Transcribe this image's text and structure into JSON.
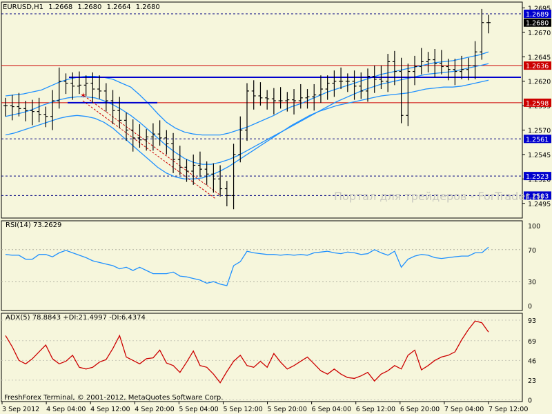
{
  "header": {
    "symbol": "EURUSD,H1",
    "open": "1.2668",
    "high": "1.2680",
    "low": "1.2664",
    "close": "1.2680"
  },
  "watermark": "Портал для трейдеров - ForTrader.ru",
  "copyright": "FreshForex Terminal, © 2001-2012, MetaQuotes Software Corp.",
  "colors": {
    "background": "#F6F6DC",
    "price_line": "#000000",
    "bollinger": "#1E90FF",
    "support_line": "#0000CD",
    "resistance_line": "#CC0000",
    "rsi_line": "#1E90FF",
    "adx_line": "#CC0000",
    "grid_dash": "#000080"
  },
  "chart_data": [
    {
      "type": "line",
      "title": "EURUSD,H1 1.2668 1.2680 1.2664 1.2680",
      "ylim": [
        1.248,
        1.2701
      ],
      "y_ticks": [
        "1.2695",
        "1.2670",
        "1.2645",
        "1.2620",
        "1.2595",
        "1.2570",
        "1.2545",
        "1.2520",
        "1.2495"
      ],
      "x_ticks": [
        "3 Sep 2012",
        "4 Sep 04:00",
        "4 Sep 12:00",
        "4 Sep 20:00",
        "5 Sep 04:00",
        "5 Sep 12:00",
        "5 Sep 20:00",
        "6 Sep 04:00",
        "6 Sep 12:00",
        "6 Sep 20:00",
        "7 Sep 04:00",
        "7 Sep 12:00"
      ],
      "price_levels": [
        {
          "label": "1.2689",
          "value": 1.2689,
          "style": "dashed-blue",
          "tag": "blue"
        },
        {
          "label": "1.2680",
          "value": 1.268,
          "style": "none",
          "tag": "black"
        },
        {
          "label": "1.2636",
          "value": 1.2636,
          "style": "solid-red",
          "tag": "red"
        },
        {
          "label": "1.2598",
          "value": 1.2598,
          "style": "solid-red",
          "tag": "red"
        },
        {
          "label": "1.2561",
          "value": 1.2561,
          "style": "dashed-blue",
          "tag": "blue"
        },
        {
          "label": "1.2523",
          "value": 1.2523,
          "style": "dashed-blue",
          "tag": "blue"
        },
        {
          "label": "1.2503",
          "value": 1.2503,
          "style": "dashed-blue",
          "tag": "blue"
        }
      ],
      "close_series": [
        1.2595,
        1.2594,
        1.2592,
        1.259,
        1.2589,
        1.2586,
        1.2584,
        1.26,
        1.262,
        1.2618,
        1.2615,
        1.2616,
        1.2618,
        1.2612,
        1.261,
        1.26,
        1.259,
        1.258,
        1.257,
        1.2562,
        1.256,
        1.2563,
        1.2566,
        1.2562,
        1.2556,
        1.254,
        1.2532,
        1.2528,
        1.2534,
        1.253,
        1.2525,
        1.252,
        1.251,
        1.2503,
        1.2545,
        1.257,
        1.261,
        1.2605,
        1.2603,
        1.2602,
        1.26,
        1.26,
        1.2601,
        1.26,
        1.2603,
        1.2604,
        1.2606,
        1.2612,
        1.2618,
        1.262,
        1.262,
        1.262,
        1.2615,
        1.261,
        1.2625,
        1.2622,
        1.262,
        1.264,
        1.263,
        1.2585,
        1.263,
        1.2635,
        1.264,
        1.2642,
        1.2638,
        1.2635,
        1.2632,
        1.263,
        1.2632,
        1.2636,
        1.265,
        1.268,
        1.268
      ],
      "bb_upper": [
        1.2605,
        1.2606,
        1.2607,
        1.2609,
        1.2611,
        1.2615,
        1.2619,
        1.2622,
        1.2624,
        1.2625,
        1.2625,
        1.2624,
        1.2622,
        1.2618,
        1.2614,
        1.2606,
        1.2597,
        1.2587,
        1.2578,
        1.2572,
        1.2568,
        1.2566,
        1.2565,
        1.2565,
        1.2565,
        1.2567,
        1.257,
        1.2573,
        1.2577,
        1.2581,
        1.2585,
        1.259,
        1.2594,
        1.2597,
        1.2601,
        1.2605,
        1.2609,
        1.2612,
        1.2615,
        1.2618,
        1.2621,
        1.2624,
        1.2627,
        1.2629,
        1.2631,
        1.2633,
        1.2635,
        1.2637,
        1.2639,
        1.264,
        1.2641,
        1.2643,
        1.2645,
        1.2647,
        1.265
      ],
      "bb_middle": [
        1.2584,
        1.2586,
        1.2588,
        1.2591,
        1.2595,
        1.2598,
        1.2601,
        1.2603,
        1.2604,
        1.2604,
        1.2603,
        1.26,
        1.2596,
        1.2591,
        1.2585,
        1.2578,
        1.257,
        1.2562,
        1.2554,
        1.2547,
        1.2541,
        1.2537,
        1.2535,
        1.2535,
        1.2537,
        1.254,
        1.2544,
        1.2549,
        1.2554,
        1.2559,
        1.2564,
        1.2569,
        1.2574,
        1.2579,
        1.2584,
        1.2589,
        1.2594,
        1.2599,
        1.2603,
        1.2607,
        1.2611,
        1.2614,
        1.2617,
        1.2619,
        1.2621,
        1.2623,
        1.2625,
        1.2627,
        1.2628,
        1.2629,
        1.263,
        1.2632,
        1.2634,
        1.2636,
        1.2638
      ],
      "bb_lower": [
        1.2565,
        1.2567,
        1.257,
        1.2573,
        1.2576,
        1.2579,
        1.2582,
        1.2584,
        1.2585,
        1.2584,
        1.2582,
        1.2578,
        1.2572,
        1.2564,
        1.2556,
        1.2548,
        1.254,
        1.2532,
        1.2526,
        1.2522,
        1.252,
        1.252,
        1.2521,
        1.2524,
        1.2528,
        1.2533,
        1.2539,
        1.2545,
        1.2551,
        1.2557,
        1.2563,
        1.2569,
        1.2575,
        1.258,
        1.2585,
        1.2589,
        1.2592,
        1.2595,
        1.2597,
        1.2599,
        1.2601,
        1.2603,
        1.2605,
        1.2606,
        1.2607,
        1.2608,
        1.261,
        1.2612,
        1.2613,
        1.2614,
        1.2614,
        1.2615,
        1.2617,
        1.2619,
        1.2621
      ]
    },
    {
      "type": "line",
      "title": "RSI(14) 73.2629",
      "ylim": [
        0,
        100
      ],
      "y_ticks": [
        "100",
        "70",
        "30",
        "0"
      ],
      "levels": [
        70,
        30
      ],
      "values": [
        64,
        63,
        63,
        58,
        58,
        64,
        64,
        61,
        66,
        69,
        66,
        63,
        60,
        56,
        54,
        52,
        50,
        46,
        48,
        44,
        48,
        44,
        40,
        40,
        40,
        42,
        37,
        36,
        34,
        32,
        28,
        30,
        27,
        25,
        50,
        55,
        68,
        66,
        65,
        64,
        64,
        63,
        64,
        63,
        64,
        63,
        66,
        67,
        68,
        66,
        65,
        67,
        66,
        64,
        65,
        70,
        66,
        63,
        68,
        48,
        58,
        62,
        64,
        63,
        60,
        59,
        60,
        61,
        62,
        62,
        66,
        66,
        73
      ]
    },
    {
      "type": "line",
      "title": "ADX(5) 78.8843 +DI:21.4997 -DI:6.4374",
      "ylim": [
        0,
        100
      ],
      "y_ticks": [
        "93",
        "69",
        "46",
        "23",
        "0"
      ],
      "values": [
        75,
        62,
        46,
        42,
        48,
        56,
        64,
        48,
        42,
        45,
        52,
        38,
        36,
        38,
        44,
        47,
        60,
        75,
        50,
        46,
        42,
        48,
        49,
        58,
        43,
        40,
        32,
        44,
        57,
        40,
        38,
        30,
        20,
        33,
        45,
        52,
        40,
        38,
        45,
        38,
        54,
        44,
        36,
        40,
        45,
        50,
        42,
        34,
        30,
        36,
        30,
        26,
        25,
        28,
        32,
        22,
        30,
        34,
        40,
        36,
        52,
        58,
        35,
        40,
        46,
        50,
        52,
        56,
        70,
        82,
        92,
        90,
        79
      ]
    }
  ]
}
